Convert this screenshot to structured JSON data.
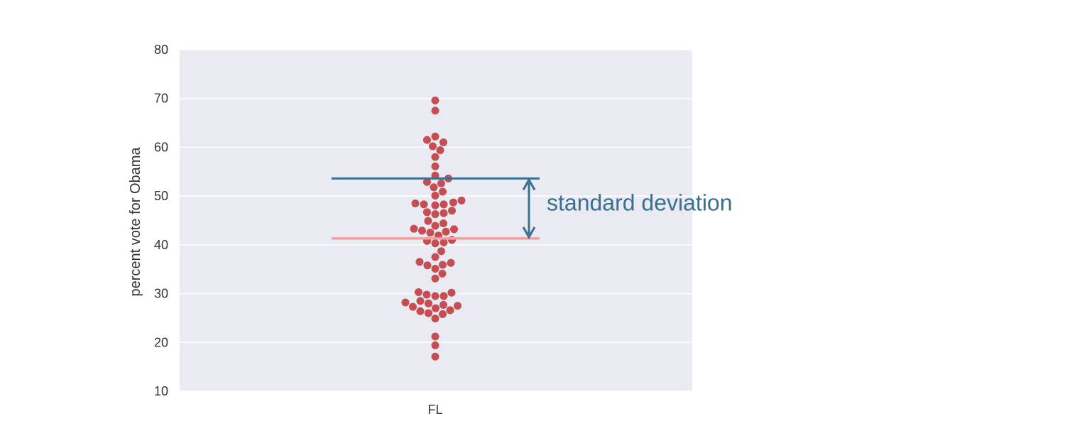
{
  "chart_data": {
    "type": "scatter",
    "subtype": "swarm",
    "title": "",
    "xlabel": "",
    "ylabel": "percent vote for Obama",
    "categories": [
      "FL"
    ],
    "ylim": [
      10,
      80
    ],
    "yticks": [
      10,
      20,
      30,
      40,
      50,
      60,
      70,
      80
    ],
    "grid": true,
    "series": [
      {
        "category": "FL",
        "values": [
          69.6,
          67.5,
          62.2,
          61.5,
          61.0,
          60.2,
          59.4,
          58.0,
          56.1,
          54.2,
          53.6,
          52.9,
          52.6,
          51.8,
          50.9,
          50.1,
          49.1,
          48.7,
          48.5,
          48.3,
          48.3,
          48.1,
          47.0,
          46.7,
          46.5,
          46.3,
          44.9,
          44.4,
          43.9,
          43.3,
          43.2,
          42.9,
          42.7,
          42.5,
          41.9,
          41.0,
          40.8,
          40.5,
          40.3,
          38.7,
          37.5,
          36.5,
          36.3,
          35.9,
          35.8,
          35.1,
          34.1,
          33.1,
          30.3,
          30.2,
          29.8,
          29.5,
          29.5,
          28.5,
          28.2,
          28.0,
          27.7,
          27.5,
          27.3,
          27.0,
          26.6,
          26.4,
          26.0,
          25.8,
          24.9,
          21.2,
          19.4,
          17.1
        ]
      }
    ],
    "point_color": "#c44e52",
    "mean": {
      "value": 41.3,
      "color": "#f0a0a0"
    },
    "mean_plus_sd": {
      "value": 53.6,
      "color": "#3a6f8f"
    },
    "annotation": {
      "text": "standard deviation",
      "color": "#3a6f8f"
    },
    "background_color": "#eaeaf2",
    "grid_color": "#ffffff"
  }
}
